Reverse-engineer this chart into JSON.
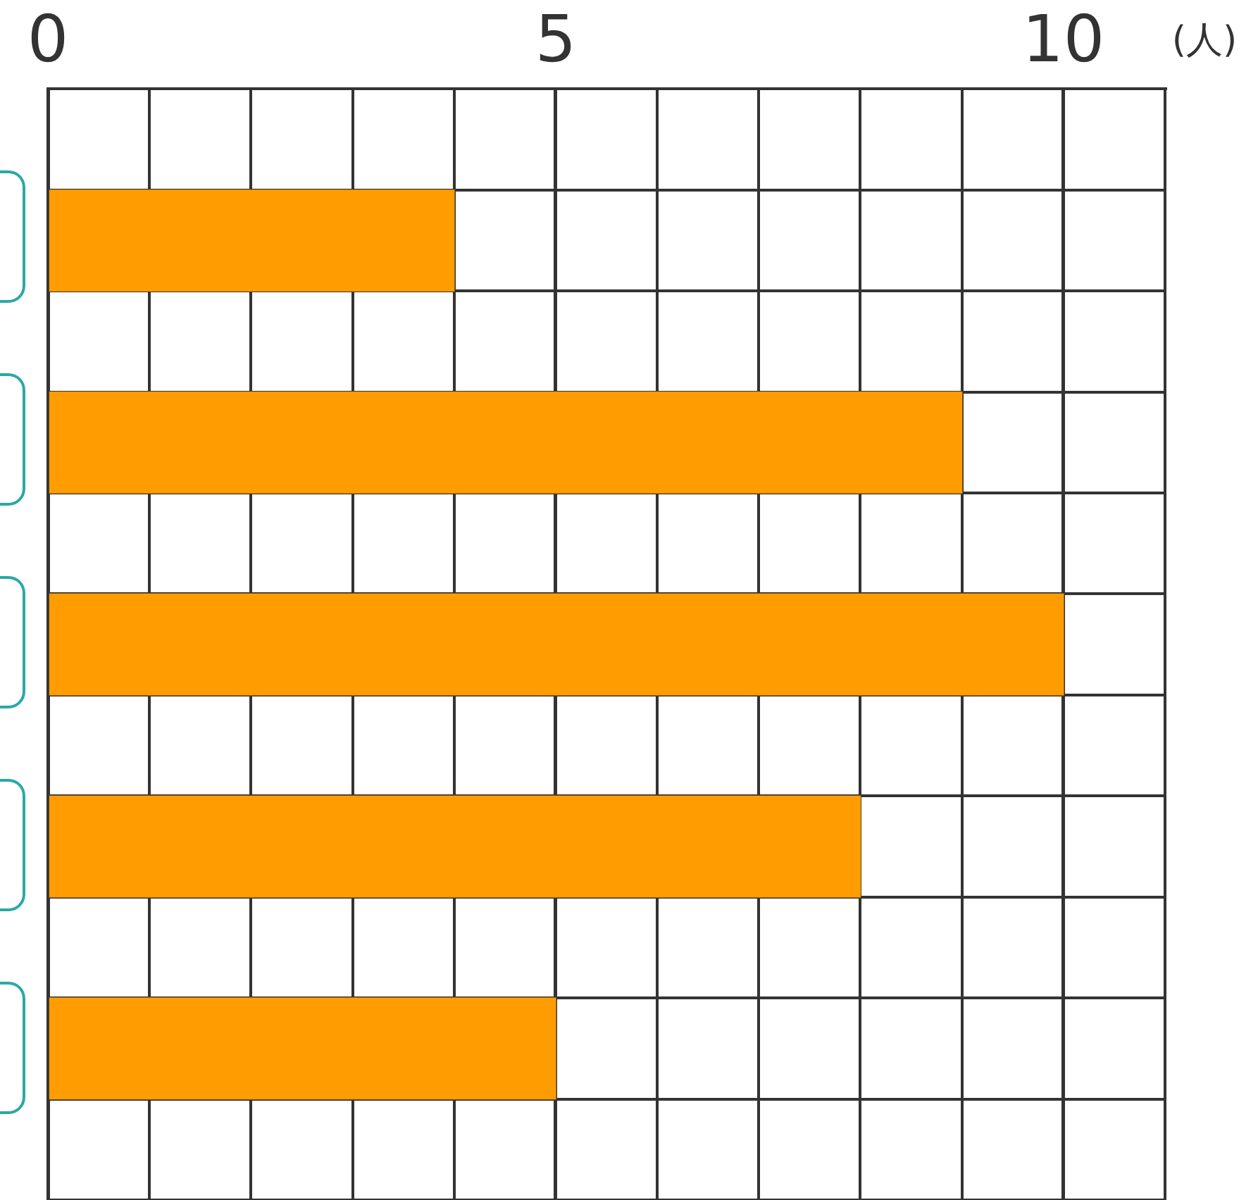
{
  "chart_data": {
    "type": "bar",
    "orientation": "horizontal",
    "xlabel": "(人)",
    "categories": [
      null,
      null,
      null,
      null,
      null,
      null,
      null,
      null,
      null,
      null,
      null
    ],
    "values": [
      null,
      4,
      null,
      9,
      null,
      10,
      null,
      8,
      null,
      5,
      null
    ],
    "color": "#ff9d00",
    "xlim": [
      0,
      11
    ],
    "xticks": [
      0,
      {
        "value": 1,
        "label": null
      },
      {
        "value": 2,
        "label": null
      },
      {
        "value": 3,
        "label": null
      },
      {
        "value": 4,
        "label": null
      },
      5,
      {
        "value": 6,
        "label": null
      },
      {
        "value": 7,
        "label": null
      },
      {
        "value": 8,
        "label": null
      },
      {
        "value": 9,
        "label": null
      },
      10,
      {
        "value": 11,
        "label": null
      }
    ],
    "grid": true,
    "legend": false
  }
}
